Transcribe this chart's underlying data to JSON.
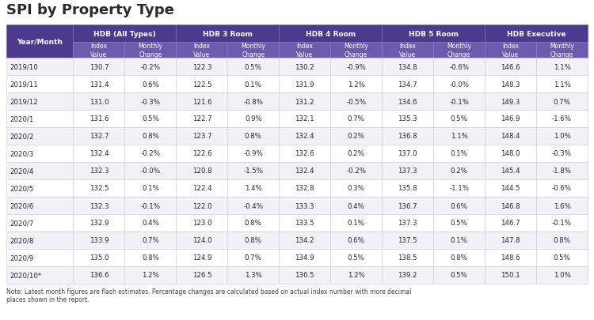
{
  "title": "SPI by Property Type",
  "col_groups": [
    {
      "label": "HDB (All Types)"
    },
    {
      "label": "HDB 3 Room"
    },
    {
      "label": "HDB 4 Room"
    },
    {
      "label": "HDB 5 Room"
    },
    {
      "label": "HDB Executive"
    }
  ],
  "rows": [
    [
      "2019/10",
      "130.7",
      "-0.2%",
      "122.3",
      "0.5%",
      "130.2",
      "-0.9%",
      "134.8",
      "-0.6%",
      "146.6",
      "1.1%"
    ],
    [
      "2019/11",
      "131.4",
      "0.6%",
      "122.5",
      "0.1%",
      "131.9",
      "1.2%",
      "134.7",
      "-0.0%",
      "148.3",
      "1.1%"
    ],
    [
      "2019/12",
      "131.0",
      "-0.3%",
      "121.6",
      "-0.8%",
      "131.2",
      "-0.5%",
      "134.6",
      "-0.1%",
      "149.3",
      "0.7%"
    ],
    [
      "2020/1",
      "131.6",
      "0.5%",
      "122.7",
      "0.9%",
      "132.1",
      "0.7%",
      "135.3",
      "0.5%",
      "146.9",
      "-1.6%"
    ],
    [
      "2020/2",
      "132.7",
      "0.8%",
      "123.7",
      "0.8%",
      "132.4",
      "0.2%",
      "136.8",
      "1.1%",
      "148.4",
      "1.0%"
    ],
    [
      "2020/3",
      "132.4",
      "-0.2%",
      "122.6",
      "-0.9%",
      "132.6",
      "0.2%",
      "137.0",
      "0.1%",
      "148.0",
      "-0.3%"
    ],
    [
      "2020/4",
      "132.3",
      "-0.0%",
      "120.8",
      "-1.5%",
      "132.4",
      "-0.2%",
      "137.3",
      "0.2%",
      "145.4",
      "-1.8%"
    ],
    [
      "2020/5",
      "132.5",
      "0.1%",
      "122.4",
      "1.4%",
      "132.8",
      "0.3%",
      "135.8",
      "-1.1%",
      "144.5",
      "-0.6%"
    ],
    [
      "2020/6",
      "132.3",
      "-0.1%",
      "122.0",
      "-0.4%",
      "133.3",
      "0.4%",
      "136.7",
      "0.6%",
      "146.8",
      "1.6%"
    ],
    [
      "2020/7",
      "132.9",
      "0.4%",
      "123.0",
      "0.8%",
      "133.5",
      "0.1%",
      "137.3",
      "0.5%",
      "146.7",
      "-0.1%"
    ],
    [
      "2020/8",
      "133.9",
      "0.7%",
      "124.0",
      "0.8%",
      "134.2",
      "0.6%",
      "137.5",
      "0.1%",
      "147.8",
      "0.8%"
    ],
    [
      "2020/9",
      "135.0",
      "0.8%",
      "124.9",
      "0.7%",
      "134.9",
      "0.5%",
      "138.5",
      "0.8%",
      "148.6",
      "0.5%"
    ],
    [
      "2020/10*",
      "136.6",
      "1.2%",
      "126.5",
      "1.3%",
      "136.5",
      "1.2%",
      "139.2",
      "0.5%",
      "150.1",
      "1.0%"
    ]
  ],
  "note": "Note: Latest month figures are flash estimates. Percentage changes are calculated based on actual index number with more decimal\nplaces shown in the report.",
  "header_bg": "#4B3A8E",
  "header_fg": "#FFFFFF",
  "subheader_bg": "#6B5BAD",
  "subheader_fg": "#FFFFFF",
  "row_bg_even": "#FFFFFF",
  "row_bg_odd": "#F2F1F8",
  "row_fg": "#2B2B2B",
  "title_color": "#2B2B2B",
  "border_color": "#CCCCCC",
  "note_color": "#444444"
}
